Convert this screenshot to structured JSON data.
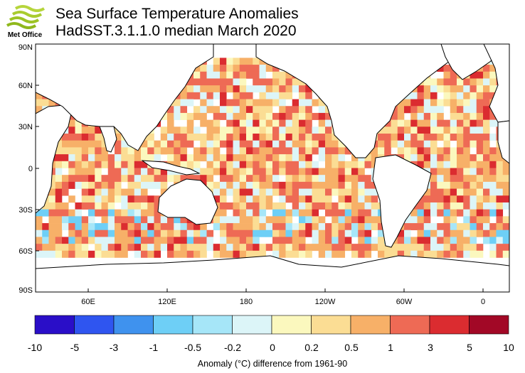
{
  "header": {
    "logo_text": "Met Office",
    "title": "Sea Surface Temperature Anomalies",
    "subtitle": "HadSST.3.1.1.0 median March 2020"
  },
  "map": {
    "lat_labels": [
      "90N",
      "60N",
      "30N",
      "0",
      "30S",
      "60S",
      "90S"
    ],
    "lon_labels": [
      "60E",
      "120E",
      "180",
      "120W",
      "60W",
      "0"
    ]
  },
  "colorbar": {
    "title": "Anomaly (°C) difference from 1961-90",
    "tick_labels": [
      "-10",
      "-5",
      "-3",
      "-1",
      "-0.5",
      "-0.2",
      "0",
      "0.2",
      "0.5",
      "1",
      "3",
      "5",
      "10"
    ],
    "colors": [
      "#2a0ec8",
      "#2f55f0",
      "#3f92ee",
      "#6ecff6",
      "#a6e6f8",
      "#dcf5f8",
      "#fbf8be",
      "#fbdd94",
      "#f7b068",
      "#ee6a55",
      "#db2c30",
      "#a20826"
    ]
  },
  "legend_colors": {
    "land": "#ffffff",
    "coast": "#000000",
    "missing": "#ffffff"
  }
}
